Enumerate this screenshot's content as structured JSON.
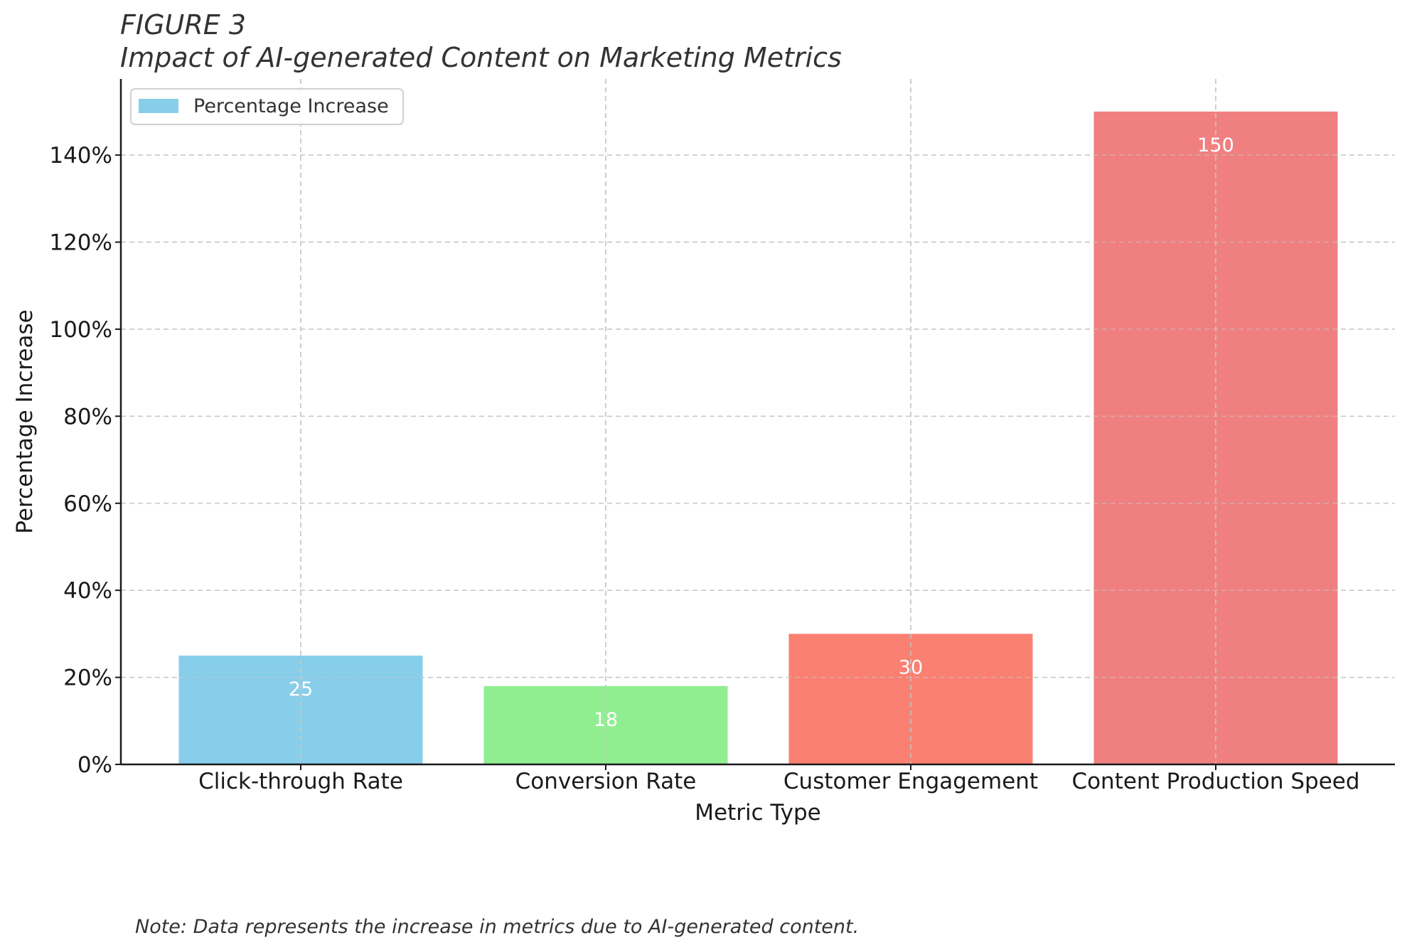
{
  "figure_label": "FIGURE 3",
  "note": "Note: Data represents the increase in metrics due to AI-generated content.",
  "legend": {
    "label": "Percentage Increase",
    "swatch_color": "#87CEEB",
    "placement": "top-left"
  },
  "chart_data": {
    "type": "bar",
    "title": "Impact of AI-generated Content on Marketing Metrics",
    "xlabel": "Metric Type",
    "ylabel": "Percentage Increase",
    "categories": [
      "Click-through Rate",
      "Conversion Rate",
      "Customer Engagement",
      "Content Production Speed"
    ],
    "values": [
      25,
      18,
      30,
      150
    ],
    "value_labels": [
      "25",
      "18",
      "30",
      "150"
    ],
    "colors": [
      "#87CEEB",
      "#90EE90",
      "#FA8072",
      "#F08080"
    ],
    "ylim": [
      0,
      157.5
    ],
    "yticks": [
      0,
      20,
      40,
      60,
      80,
      100,
      120,
      140
    ],
    "ytick_labels": [
      "0%",
      "20%",
      "40%",
      "60%",
      "80%",
      "100%",
      "120%",
      "140%"
    ],
    "grid": true,
    "legend_position": "top-left"
  }
}
